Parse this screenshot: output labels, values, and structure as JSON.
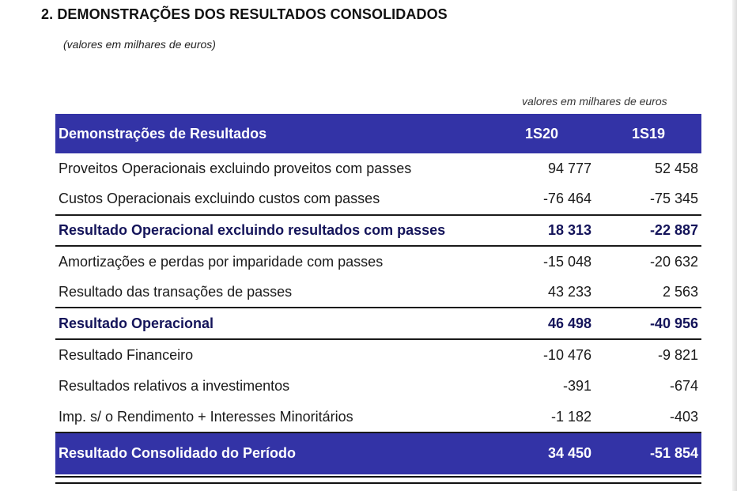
{
  "document": {
    "section_title": "2. DEMONSTRAÇÕES DOS RESULTADOS CONSOLIDADOS",
    "subtitle": "(valores em milhares de euros)",
    "units_note": "valores em milhares de euros"
  },
  "table": {
    "header": {
      "label": "Demonstrações de Resultados",
      "col_a": "1S20",
      "col_b": "1S19"
    },
    "rows": [
      {
        "label": "Proveitos Operacionais excluindo proveitos com passes",
        "a": "94 777",
        "b": "52 458"
      },
      {
        "label": "Custos Operacionais excluindo custos com passes",
        "a": "-76 464",
        "b": "-75 345"
      },
      {
        "label": "Resultado Operacional excluindo resultados com passes",
        "a": "18 313",
        "b": "-22 887"
      },
      {
        "label": "Amortizações e perdas por imparidade com passes",
        "a": "-15 048",
        "b": "-20 632"
      },
      {
        "label": "Resultado das transações de passes",
        "a": "43 233",
        "b": "2 563"
      },
      {
        "label": "Resultado Operacional",
        "a": "46 498",
        "b": "-40 956"
      },
      {
        "label": "Resultado Financeiro",
        "a": "-10 476",
        "b": "-9 821"
      },
      {
        "label": "Resultados relativos a investimentos",
        "a": "-391",
        "b": "-674"
      },
      {
        "label": "Imp. s/ o Rendimento + Interesses Minoritários",
        "a": "-1 182",
        "b": "-403"
      }
    ],
    "total": {
      "label": "Resultado Consolidado do Período",
      "a": "34 450",
      "b": "-51 854"
    }
  }
}
